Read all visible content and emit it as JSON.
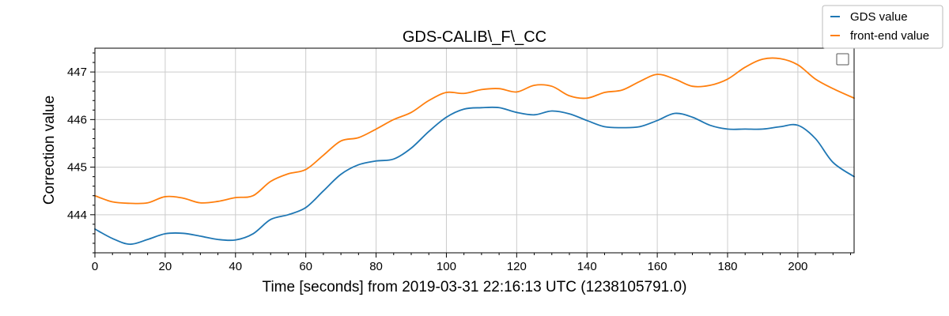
{
  "chart_data": {
    "type": "line",
    "title": "GDS-CALIB\\_F\\_CC",
    "xlabel": "Time [seconds] from 2019-03-31 22:16:13 UTC (1238105791.0)",
    "ylabel": "Correction value",
    "xlim": [
      0,
      216
    ],
    "ylim": [
      443.2,
      447.5
    ],
    "xticks": [
      0,
      20,
      40,
      60,
      80,
      100,
      120,
      140,
      160,
      180,
      200
    ],
    "yticks": [
      444,
      445,
      446,
      447
    ],
    "grid": true,
    "legend_placement": "top-right (outside)",
    "x": [
      0,
      5,
      10,
      15,
      20,
      25,
      30,
      35,
      40,
      45,
      50,
      55,
      60,
      65,
      70,
      75,
      80,
      85,
      90,
      95,
      100,
      105,
      110,
      115,
      120,
      125,
      130,
      135,
      140,
      145,
      150,
      155,
      160,
      165,
      170,
      175,
      180,
      185,
      190,
      195,
      200,
      205,
      210,
      216
    ],
    "series": [
      {
        "name": "GDS value",
        "color": "#1f77b4",
        "values": [
          443.7,
          443.5,
          443.38,
          443.48,
          443.6,
          443.61,
          443.55,
          443.48,
          443.47,
          443.6,
          443.9,
          444.0,
          444.15,
          444.5,
          444.85,
          445.05,
          445.13,
          445.17,
          445.4,
          445.75,
          446.05,
          446.22,
          446.25,
          446.25,
          446.15,
          446.1,
          446.18,
          446.12,
          445.98,
          445.85,
          445.83,
          445.85,
          445.98,
          446.13,
          446.05,
          445.88,
          445.8,
          445.8,
          445.8,
          445.85,
          445.88,
          445.6,
          445.1,
          444.8
        ]
      },
      {
        "name": "front-end value",
        "color": "#ff7f0e",
        "values": [
          444.4,
          444.27,
          444.24,
          444.25,
          444.38,
          444.35,
          444.25,
          444.28,
          444.36,
          444.4,
          444.7,
          444.86,
          444.95,
          445.25,
          445.55,
          445.62,
          445.8,
          446.0,
          446.15,
          446.4,
          446.57,
          446.55,
          446.63,
          446.65,
          446.58,
          446.72,
          446.7,
          446.5,
          446.45,
          446.57,
          446.62,
          446.8,
          446.95,
          446.85,
          446.7,
          446.72,
          446.85,
          447.1,
          447.27,
          447.28,
          447.15,
          446.85,
          446.65,
          446.45
        ]
      }
    ]
  }
}
